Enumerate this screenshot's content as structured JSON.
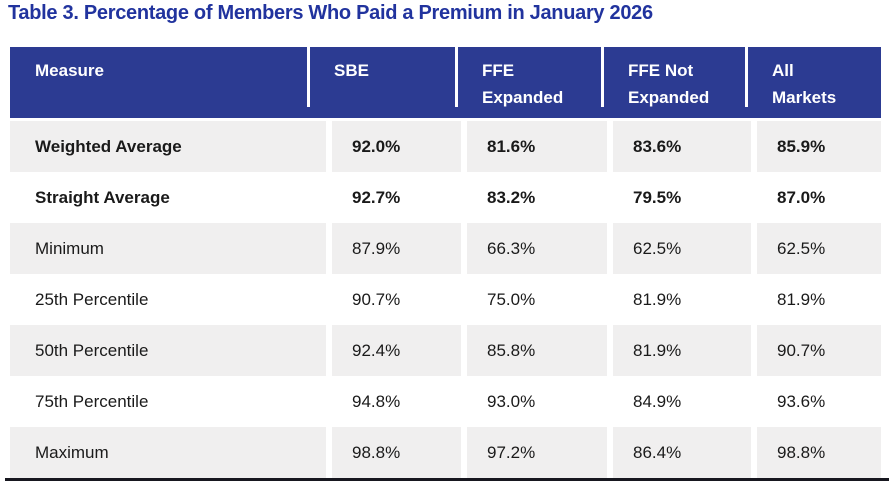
{
  "title": "Table 3. Percentage of Members Who Paid a Premium in January 2026",
  "colors": {
    "title_text": "#21339e",
    "header_bg": "#2c3b92",
    "header_text": "#ffffff",
    "alt_row_bg": "#f0efef",
    "body_text": "#1a1a1a",
    "bottom_rule": "#17171f"
  },
  "table": {
    "columns": [
      {
        "label": "Measure"
      },
      {
        "label": "SBE"
      },
      {
        "label": "FFE",
        "label2": "Expanded"
      },
      {
        "label": "FFE Not",
        "label2": "Expanded"
      },
      {
        "label": "All",
        "label2": "Markets"
      }
    ],
    "rows": [
      {
        "measure": "Weighted Average",
        "bold": true,
        "values": [
          "92.0%",
          "81.6%",
          "83.6%",
          "85.9%"
        ]
      },
      {
        "measure": "Straight Average",
        "bold": true,
        "values": [
          "92.7%",
          "83.2%",
          "79.5%",
          "87.0%"
        ]
      },
      {
        "measure": "Minimum",
        "bold": false,
        "values": [
          "87.9%",
          "66.3%",
          "62.5%",
          "62.5%"
        ]
      },
      {
        "measure": "25th Percentile",
        "bold": false,
        "values": [
          "90.7%",
          "75.0%",
          "81.9%",
          "81.9%"
        ]
      },
      {
        "measure": "50th Percentile",
        "bold": false,
        "values": [
          "92.4%",
          "85.8%",
          "81.9%",
          "90.7%"
        ]
      },
      {
        "measure": "75th Percentile",
        "bold": false,
        "values": [
          "94.8%",
          "93.0%",
          "84.9%",
          "93.6%"
        ]
      },
      {
        "measure": "Maximum",
        "bold": false,
        "values": [
          "98.8%",
          "97.2%",
          "86.4%",
          "98.8%"
        ]
      }
    ]
  }
}
